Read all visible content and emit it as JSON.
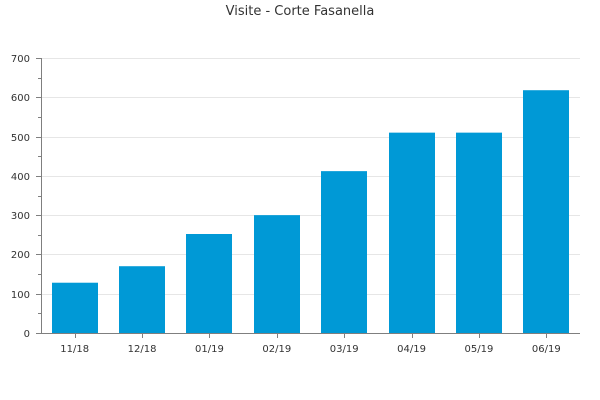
{
  "chart_data": {
    "type": "bar",
    "title": "Visite - Corte Fasanella",
    "xlabel": "",
    "ylabel": "",
    "categories": [
      "11/18",
      "12/18",
      "01/19",
      "02/19",
      "03/19",
      "04/19",
      "05/19",
      "06/19"
    ],
    "values": [
      128,
      170,
      252,
      300,
      412,
      510,
      510,
      618
    ],
    "ylim": [
      0,
      700
    ],
    "yticks": [
      0,
      100,
      200,
      300,
      400,
      500,
      600,
      700
    ],
    "grid": true,
    "bar_color": "#0099d6",
    "axis_color": "#7f7f7f",
    "grid_color": "#e6e6e6"
  }
}
